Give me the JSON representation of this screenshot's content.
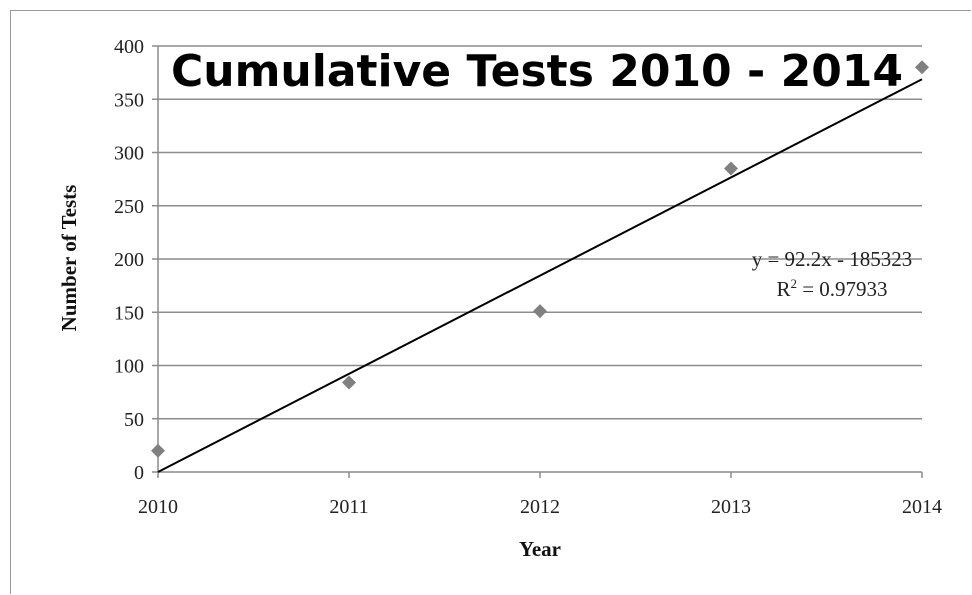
{
  "chart_data": {
    "type": "scatter",
    "title": "Cumulative Tests 2010 - 2014",
    "xlabel": "Year",
    "ylabel": "Number of Tests",
    "xlim": [
      2010,
      2014
    ],
    "ylim": [
      0,
      400
    ],
    "x_ticks": [
      "2010",
      "2011",
      "2012",
      "2013",
      "2014"
    ],
    "y_ticks": [
      "0",
      "50",
      "100",
      "150",
      "200",
      "250",
      "300",
      "350",
      "400"
    ],
    "grid": true,
    "series": [
      {
        "x": [
          2010,
          2011,
          2012,
          2013,
          2014
        ],
        "y": [
          20,
          84,
          151,
          285,
          380
        ],
        "marker": "diamond",
        "color": "#808080"
      }
    ],
    "trendline": {
      "type": "linear",
      "equation": "y = 92.2x - 185323",
      "r_squared_label": "R",
      "r_squared_sup": "2",
      "r_squared_value": " = 0.97933",
      "x_range": [
        2010,
        2014
      ],
      "y_range": [
        0,
        368.8
      ],
      "color": "#000000"
    }
  }
}
